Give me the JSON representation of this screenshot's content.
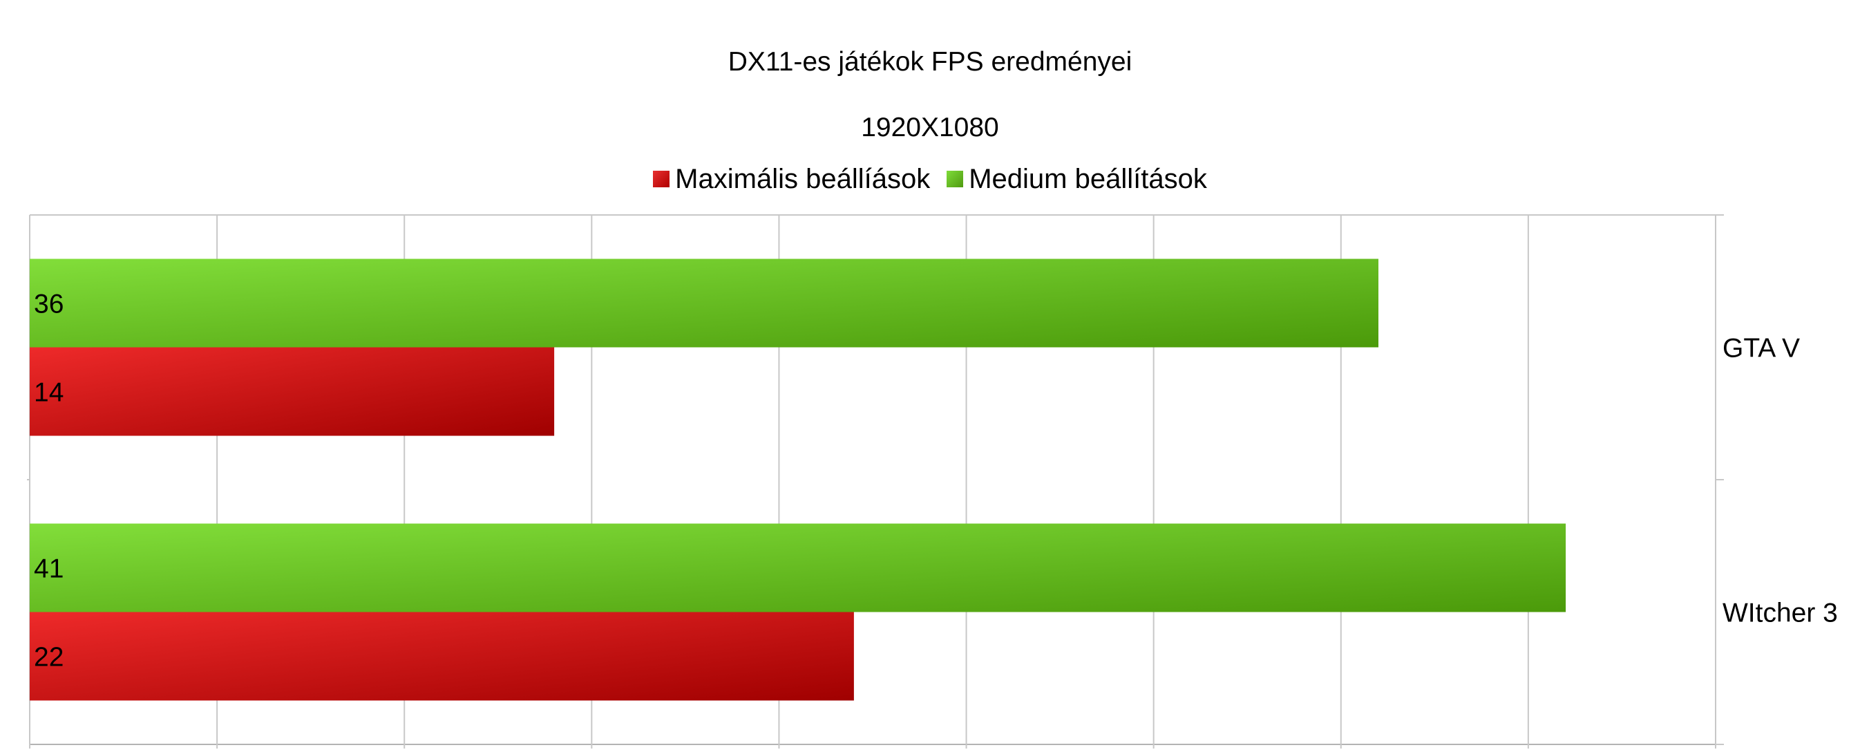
{
  "chart_data": {
    "type": "bar",
    "orientation": "horizontal",
    "title": "DX11-es játékok FPS eredményei",
    "subtitle": "1920X1080",
    "categories": [
      "GTA V",
      "WItcher 3"
    ],
    "series": [
      {
        "name": "Maximális beállíások",
        "values": [
          14,
          22
        ],
        "color": "#cc1111"
      },
      {
        "name": "Medium beállítások",
        "values": [
          36,
          41
        ],
        "color": "#66bb22"
      }
    ],
    "xlim": [
      0,
      45
    ],
    "xticks": [
      0,
      5,
      10,
      15,
      20,
      25,
      30,
      35,
      40,
      45
    ],
    "xlabel": "",
    "ylabel": "",
    "grid": true,
    "legend": "top",
    "category_labels": "right"
  }
}
